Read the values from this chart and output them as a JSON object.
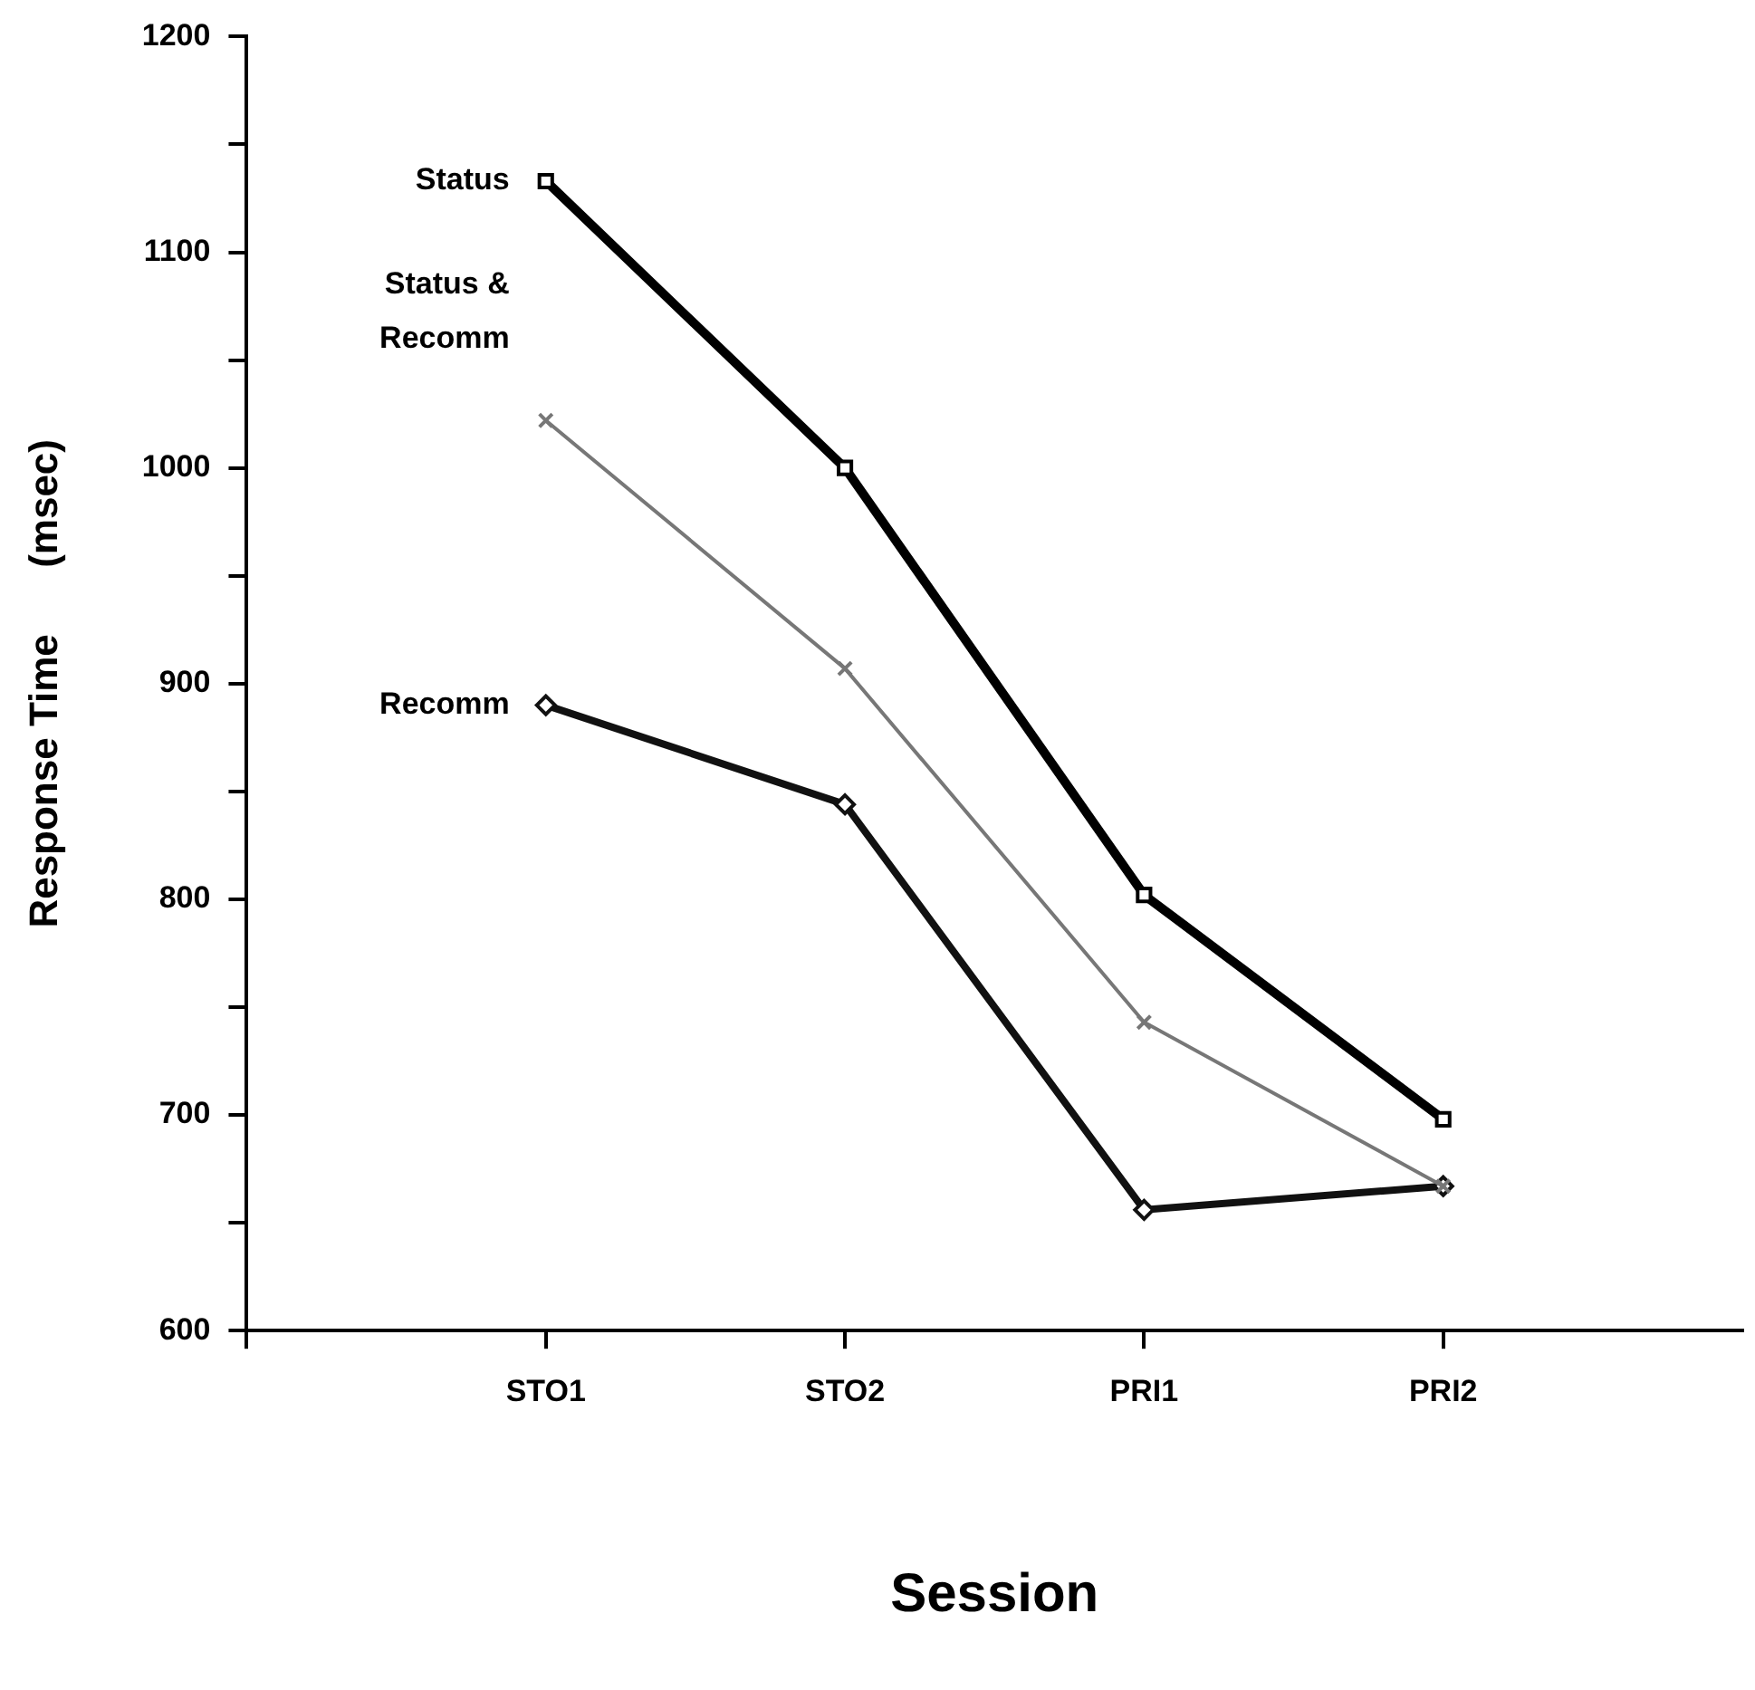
{
  "chart_data": {
    "type": "line",
    "xlabel": "Session",
    "ylabel": "Response Time      (msec)",
    "categories": [
      "STO1",
      "STO2",
      "PRI1",
      "PRI2"
    ],
    "series": [
      {
        "name": "Status",
        "color": "#000000",
        "marker": "square",
        "values": [
          1133,
          1000,
          802,
          698
        ]
      },
      {
        "name": "Status & Recomm",
        "color": "#777777",
        "marker": "cross",
        "values": [
          1022,
          907,
          743,
          667
        ]
      },
      {
        "name": "Recomm",
        "color": "#111111",
        "marker": "diamond",
        "values": [
          890,
          844,
          656,
          667
        ]
      }
    ],
    "ylim": [
      600,
      1200
    ],
    "yticks": [
      600,
      {
        "value": 650,
        "label": null
      },
      700,
      {
        "value": 750,
        "label": null
      },
      800,
      {
        "value": 850,
        "label": null
      },
      900,
      {
        "value": 950,
        "label": null
      },
      1000,
      {
        "value": 1050,
        "label": null
      },
      1100,
      {
        "value": 1150,
        "label": null
      },
      1200
    ],
    "grid": false,
    "legend": false
  }
}
